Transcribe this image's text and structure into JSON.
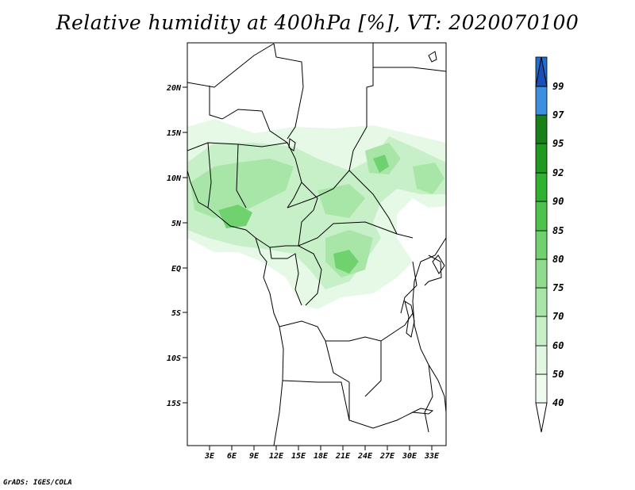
{
  "title": "Relative humidity at 400hPa [%], VT: 2020070100",
  "credit": "GrADS: IGES/COLA",
  "map": {
    "lat_ticks": [
      "20N",
      "15N",
      "10N",
      "5N",
      "EQ",
      "5S",
      "10S",
      "15S"
    ],
    "lon_ticks": [
      "3E",
      "6E",
      "9E",
      "12E",
      "15E",
      "18E",
      "21E",
      "24E",
      "27E",
      "30E",
      "33E"
    ],
    "lat_range": [
      -20,
      25
    ],
    "lon_range": [
      0,
      35
    ]
  },
  "colorbar": {
    "labels": [
      "40",
      "50",
      "60",
      "70",
      "75",
      "80",
      "85",
      "90",
      "92",
      "95",
      "97",
      "99"
    ],
    "colors": [
      "#f0fbf0",
      "#e1f7e1",
      "#c8f0c8",
      "#a8e6a8",
      "#8fdc8f",
      "#6fd26f",
      "#4cc44c",
      "#2fb22f",
      "#1f9a1f",
      "#178017",
      "#3d8fe0",
      "#1f6fd0",
      "#1a4fb8"
    ]
  }
}
